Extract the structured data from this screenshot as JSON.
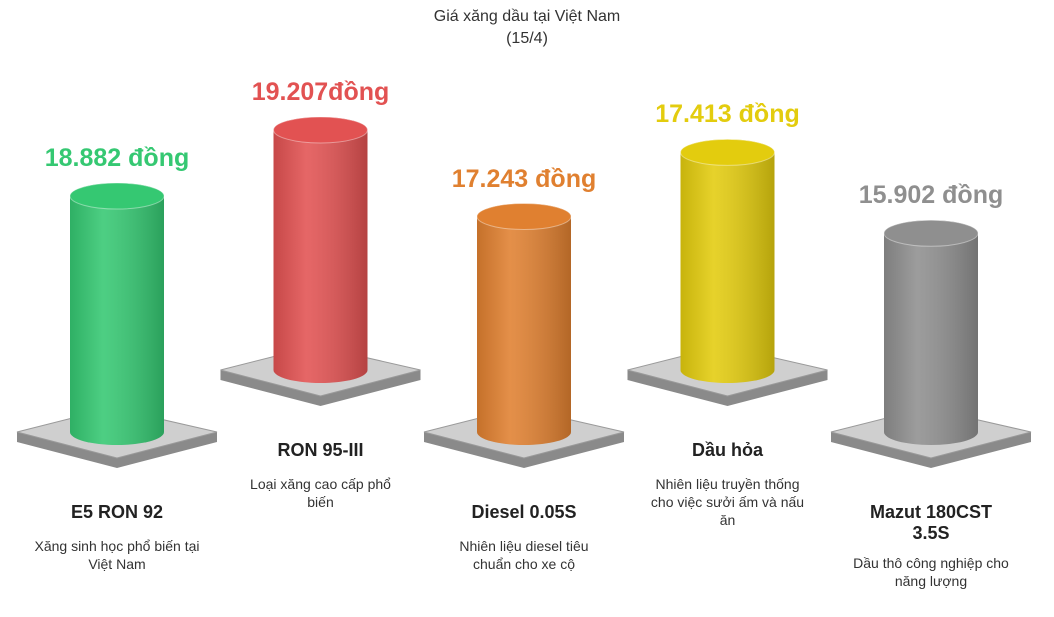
{
  "chart_data": {
    "type": "cylinder",
    "title": "Giá xăng dầu tại Việt Nam",
    "subtitle": "(15/4)",
    "categories": [
      "E5 RON 92",
      "RON 95-III",
      "Diesel 0.05S",
      "Dầu hỏa",
      "Mazut 180CST 3.5S"
    ],
    "descriptions": [
      "Xăng sinh học phổ biến tại Việt Nam",
      "Loại xăng cao cấp phổ biến",
      "Nhiên liệu diesel tiêu chuẩn cho xe cộ",
      "Nhiên liệu truyền thống cho việc sưởi ấm và nấu ăn",
      "Dầu thô công nghiệp cho năng lượng"
    ],
    "values": [
      18882,
      19207,
      17243,
      17413,
      15902
    ],
    "value_labels": [
      "18.882 đồng",
      "19.207đồng",
      "17.243 đồng",
      "17.413 đồng",
      "15.902 đồng"
    ],
    "colors": [
      "#35c872",
      "#e25252",
      "#e08030",
      "#e3cc0e",
      "#8f8f8f"
    ]
  }
}
